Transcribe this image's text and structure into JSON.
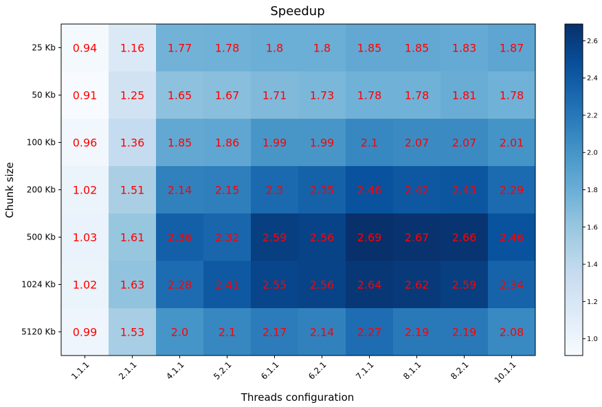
{
  "chart_data": {
    "type": "heatmap",
    "title": "Speedup",
    "xlabel": "Threads configuration",
    "ylabel": "Chunk size",
    "x_categories": [
      "1.1.1",
      "2.1.1",
      "4.1.1",
      "5.2.1",
      "6.1.1",
      "6.2.1",
      "7.1.1",
      "8.1.1",
      "8.2.1",
      "10.1.1"
    ],
    "y_categories": [
      "25 Kb",
      "50 Kb",
      "100 Kb",
      "200 Kb",
      "500 Kb",
      "1024 Kb",
      "5120 Kb"
    ],
    "values": [
      [
        0.94,
        1.16,
        1.77,
        1.78,
        1.8,
        1.8,
        1.85,
        1.85,
        1.83,
        1.87
      ],
      [
        0.91,
        1.25,
        1.65,
        1.67,
        1.71,
        1.73,
        1.78,
        1.78,
        1.81,
        1.78
      ],
      [
        0.96,
        1.36,
        1.85,
        1.86,
        1.99,
        1.99,
        2.1,
        2.07,
        2.07,
        2.01
      ],
      [
        1.02,
        1.51,
        2.14,
        2.15,
        2.3,
        2.35,
        2.46,
        2.42,
        2.43,
        2.29
      ],
      [
        1.03,
        1.61,
        2.36,
        2.32,
        2.59,
        2.56,
        2.69,
        2.67,
        2.66,
        2.46
      ],
      [
        1.02,
        1.63,
        2.28,
        2.41,
        2.55,
        2.56,
        2.64,
        2.62,
        2.59,
        2.34
      ],
      [
        0.99,
        1.53,
        2.0,
        2.1,
        2.17,
        2.14,
        2.27,
        2.19,
        2.19,
        2.08
      ]
    ],
    "value_labels": [
      [
        "0.94",
        "1.16",
        "1.77",
        "1.78",
        "1.8",
        "1.8",
        "1.85",
        "1.85",
        "1.83",
        "1.87"
      ],
      [
        "0.91",
        "1.25",
        "1.65",
        "1.67",
        "1.71",
        "1.73",
        "1.78",
        "1.78",
        "1.81",
        "1.78"
      ],
      [
        "0.96",
        "1.36",
        "1.85",
        "1.86",
        "1.99",
        "1.99",
        "2.1",
        "2.07",
        "2.07",
        "2.01"
      ],
      [
        "1.02",
        "1.51",
        "2.14",
        "2.15",
        "2.3",
        "2.35",
        "2.46",
        "2.42",
        "2.43",
        "2.29"
      ],
      [
        "1.03",
        "1.61",
        "2.36",
        "2.32",
        "2.59",
        "2.56",
        "2.69",
        "2.67",
        "2.66",
        "2.46"
      ],
      [
        "1.02",
        "1.63",
        "2.28",
        "2.41",
        "2.55",
        "2.56",
        "2.64",
        "2.62",
        "2.59",
        "2.34"
      ],
      [
        "0.99",
        "1.53",
        "2.0",
        "2.1",
        "2.17",
        "2.14",
        "2.27",
        "2.19",
        "2.19",
        "2.08"
      ]
    ],
    "colormap": "Blues",
    "vmin": 0.91,
    "vmax": 2.69,
    "annotation_color": "#ff0000",
    "colorbar": {
      "ticks": [
        1.0,
        1.2,
        1.4,
        1.6,
        1.8,
        2.0,
        2.2,
        2.4,
        2.6
      ],
      "tick_labels": [
        "1.0",
        "1.2",
        "1.4",
        "1.6",
        "1.8",
        "2.0",
        "2.2",
        "2.4",
        "2.6"
      ]
    }
  }
}
